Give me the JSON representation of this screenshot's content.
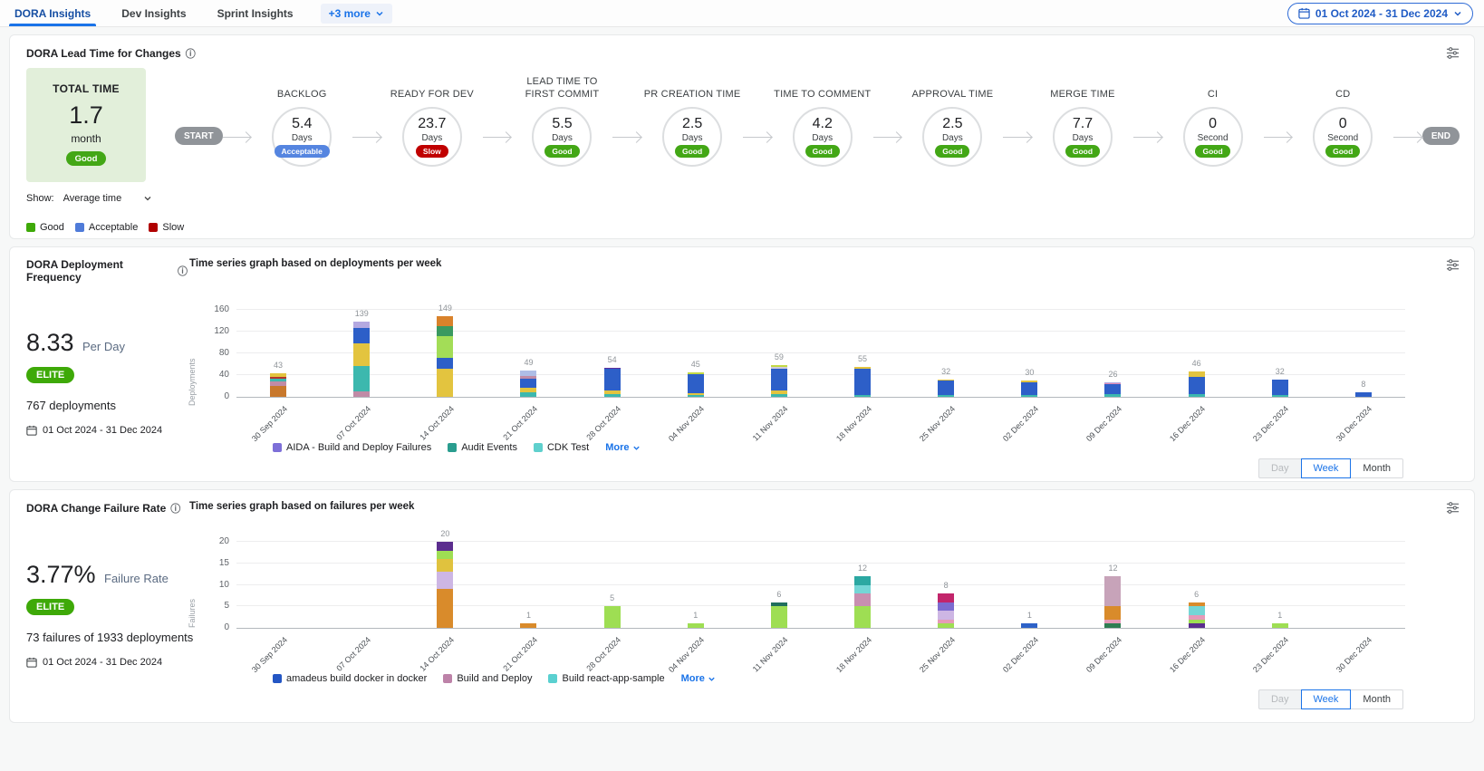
{
  "nav": {
    "tabs": [
      {
        "label": "DORA Insights",
        "active": true
      },
      {
        "label": "Dev Insights",
        "active": false
      },
      {
        "label": "Sprint Insights",
        "active": false
      }
    ],
    "more_label": "+3 more",
    "date_range": "01 Oct 2024 - 31 Dec 2024"
  },
  "lead_time": {
    "title": "DORA Lead Time for Changes",
    "total_label": "TOTAL TIME",
    "total_value": "1.7",
    "total_unit": "month",
    "total_status": "Good",
    "show_label": "Show:",
    "show_value": "Average time",
    "start_label": "START",
    "end_label": "END",
    "legend": [
      {
        "label": "Good",
        "color": "#3ea908"
      },
      {
        "label": "Acceptable",
        "color": "#4f7bd9"
      },
      {
        "label": "Slow",
        "color": "#b00000"
      }
    ],
    "status_colors": {
      "Good": "#43a716",
      "Acceptable": "#5585e0",
      "Slow": "#c00000"
    },
    "stages": [
      {
        "name": "BACKLOG",
        "value": "5.4",
        "unit": "Days",
        "status": "Acceptable"
      },
      {
        "name": "READY FOR DEV",
        "value": "23.7",
        "unit": "Days",
        "status": "Slow"
      },
      {
        "name": "LEAD TIME TO FIRST COMMIT",
        "value": "5.5",
        "unit": "Days",
        "status": "Good"
      },
      {
        "name": "PR CREATION TIME",
        "value": "2.5",
        "unit": "Days",
        "status": "Good"
      },
      {
        "name": "TIME TO COMMENT",
        "value": "4.2",
        "unit": "Days",
        "status": "Good"
      },
      {
        "name": "APPROVAL TIME",
        "value": "2.5",
        "unit": "Days",
        "status": "Good"
      },
      {
        "name": "MERGE TIME",
        "value": "7.7",
        "unit": "Days",
        "status": "Good"
      },
      {
        "name": "CI",
        "value": "0",
        "unit": "Second",
        "status": "Good"
      },
      {
        "name": "CD",
        "value": "0",
        "unit": "Second",
        "status": "Good"
      }
    ]
  },
  "deployment": {
    "title": "DORA Deployment Frequency",
    "rate_value": "8.33",
    "rate_unit": "Per Day",
    "tier": "ELITE",
    "count_text": "767 deployments",
    "date_range": "01 Oct 2024 - 31 Dec 2024"
  },
  "failure": {
    "title": "DORA Change Failure Rate",
    "rate_value": "3.77%",
    "rate_unit": "Failure Rate",
    "tier": "ELITE",
    "count_text": "73 failures of 1933 deployments",
    "date_range": "01 Oct 2024 - 31 Dec 2024"
  },
  "period_toggle": {
    "options": [
      "Day",
      "Week",
      "Month"
    ],
    "active": "Week"
  },
  "chart_data": [
    {
      "type": "bar",
      "stacked": true,
      "title": "Time series graph based on deployments per week",
      "xlabel": "",
      "ylabel": "Deployments",
      "ylim": [
        0,
        160
      ],
      "yticks": [
        0,
        40,
        80,
        120,
        160
      ],
      "grid": true,
      "legend_position": "bottom",
      "categories": [
        "30 Sep 2024",
        "07 Oct 2024",
        "14 Oct 2024",
        "21 Oct 2024",
        "28 Oct 2024",
        "04 Nov 2024",
        "11 Nov 2024",
        "18 Nov 2024",
        "25 Nov 2024",
        "02 Dec 2024",
        "09 Dec 2024",
        "16 Dec 2024",
        "23 Dec 2024",
        "30 Dec 2024"
      ],
      "totals": [
        43,
        139,
        149,
        49,
        54,
        45,
        59,
        55,
        32,
        30,
        26,
        46,
        32,
        8
      ],
      "stacks": [
        [
          {
            "c": "#c8782c",
            "v": 20
          },
          {
            "c": "#c08ba6",
            "v": 9
          },
          {
            "c": "#3cb8ae",
            "v": 5
          },
          {
            "c": "#b5332c",
            "v": 2
          },
          {
            "c": "#e3c43f",
            "v": 7
          }
        ],
        [
          {
            "c": "#c08ba6",
            "v": 10
          },
          {
            "c": "#3cb8ae",
            "v": 47
          },
          {
            "c": "#e3c43f",
            "v": 42
          },
          {
            "c": "#2d5fc8",
            "v": 27
          },
          {
            "c": "#b4a8e0",
            "v": 13
          }
        ],
        [
          {
            "c": "#e3c43f",
            "v": 52
          },
          {
            "c": "#2d5fc8",
            "v": 19
          },
          {
            "c": "#a3dd57",
            "v": 41
          },
          {
            "c": "#3a9960",
            "v": 18
          },
          {
            "c": "#d9822b",
            "v": 19
          }
        ],
        [
          {
            "c": "#3cb8ae",
            "v": 9
          },
          {
            "c": "#e3c43f",
            "v": 8
          },
          {
            "c": "#2d5fc8",
            "v": 16
          },
          {
            "c": "#c08ba6",
            "v": 5
          },
          {
            "c": "#aebde6",
            "v": 11
          }
        ],
        [
          {
            "c": "#3cb8ae",
            "v": 5
          },
          {
            "c": "#e3c43f",
            "v": 6
          },
          {
            "c": "#2d5fc8",
            "v": 40
          },
          {
            "c": "#5e2f9e",
            "v": 3
          }
        ],
        [
          {
            "c": "#3cb8ae",
            "v": 4
          },
          {
            "c": "#e3c43f",
            "v": 3
          },
          {
            "c": "#2d5fc8",
            "v": 34
          },
          {
            "c": "#c3d944",
            "v": 4
          }
        ],
        [
          {
            "c": "#3cb8ae",
            "v": 5
          },
          {
            "c": "#e3c43f",
            "v": 6
          },
          {
            "c": "#2d5fc8",
            "v": 40
          },
          {
            "c": "#cfcbdd",
            "v": 4
          },
          {
            "c": "#c3d944",
            "v": 4
          }
        ],
        [
          {
            "c": "#3cb8ae",
            "v": 4
          },
          {
            "c": "#2d5fc8",
            "v": 48
          },
          {
            "c": "#e3c43f",
            "v": 3
          }
        ],
        [
          {
            "c": "#3cb8ae",
            "v": 4
          },
          {
            "c": "#2d5fc8",
            "v": 26
          },
          {
            "c": "#e3c43f",
            "v": 2
          }
        ],
        [
          {
            "c": "#3cb8ae",
            "v": 4
          },
          {
            "c": "#2d5fc8",
            "v": 23
          },
          {
            "c": "#e3c43f",
            "v": 3
          }
        ],
        [
          {
            "c": "#3cb8ae",
            "v": 5
          },
          {
            "c": "#2d5fc8",
            "v": 18
          },
          {
            "c": "#e08cb4",
            "v": 2
          },
          {
            "c": "#b4a8e0",
            "v": 1
          }
        ],
        [
          {
            "c": "#3cb8ae",
            "v": 5
          },
          {
            "c": "#2d5fc8",
            "v": 31
          },
          {
            "c": "#e3c43f",
            "v": 10
          }
        ],
        [
          {
            "c": "#3cb8ae",
            "v": 3
          },
          {
            "c": "#2d5fc8",
            "v": 29
          }
        ],
        [
          {
            "c": "#2d5fc8",
            "v": 8
          }
        ]
      ],
      "legend": [
        {
          "label": "AIDA - Build and Deploy Failures",
          "color": "#7d6fd8"
        },
        {
          "label": "Audit Events",
          "color": "#2a9d8f"
        },
        {
          "label": "CDK Test",
          "color": "#5fd0cd"
        }
      ],
      "more_label": "More"
    },
    {
      "type": "bar",
      "stacked": true,
      "title": "Time series graph based on failures per week",
      "xlabel": "",
      "ylabel": "Failures",
      "ylim": [
        0,
        20
      ],
      "yticks": [
        0,
        5,
        10,
        15,
        20
      ],
      "grid": true,
      "legend_position": "bottom",
      "categories": [
        "30 Sep 2024",
        "07 Oct 2024",
        "14 Oct 2024",
        "21 Oct 2024",
        "28 Oct 2024",
        "04 Nov 2024",
        "11 Nov 2024",
        "18 Nov 2024",
        "25 Nov 2024",
        "02 Dec 2024",
        "09 Dec 2024",
        "16 Dec 2024",
        "23 Dec 2024",
        "30 Dec 2024"
      ],
      "totals": [
        0,
        0,
        20,
        1,
        5,
        1,
        6,
        12,
        8,
        1,
        12,
        6,
        1,
        0
      ],
      "stacks": [
        [],
        [],
        [
          {
            "c": "#d98b2b",
            "v": 9
          },
          {
            "c": "#cdb6e4",
            "v": 4
          },
          {
            "c": "#e0c23e",
            "v": 3
          },
          {
            "c": "#9ede53",
            "v": 2
          },
          {
            "c": "#5b2d8e",
            "v": 2
          }
        ],
        [
          {
            "c": "#d98b2b",
            "v": 1
          }
        ],
        [
          {
            "c": "#9ede53",
            "v": 5
          }
        ],
        [
          {
            "c": "#9ede53",
            "v": 1
          }
        ],
        [
          {
            "c": "#9ede53",
            "v": 5
          },
          {
            "c": "#1f6f5d",
            "v": 1
          }
        ],
        [
          {
            "c": "#9ede53",
            "v": 5
          },
          {
            "c": "#c88fb0",
            "v": 3
          },
          {
            "c": "#74d6d6",
            "v": 2
          },
          {
            "c": "#2ba8a2",
            "v": 2
          }
        ],
        [
          {
            "c": "#9ede53",
            "v": 1
          },
          {
            "c": "#e59ab8",
            "v": 1
          },
          {
            "c": "#cdb6e4",
            "v": 2
          },
          {
            "c": "#7c6bd0",
            "v": 2
          },
          {
            "c": "#c2256b",
            "v": 2
          }
        ],
        [
          {
            "c": "#2d62c8",
            "v": 1
          }
        ],
        [
          {
            "c": "#2e7d52",
            "v": 1
          },
          {
            "c": "#e59ab8",
            "v": 1
          },
          {
            "c": "#d98b2b",
            "v": 3
          },
          {
            "c": "#c7a3b9",
            "v": 7
          }
        ],
        [
          {
            "c": "#5b2d8e",
            "v": 1
          },
          {
            "c": "#9ede53",
            "v": 1
          },
          {
            "c": "#e59ab8",
            "v": 1
          },
          {
            "c": "#74d6d6",
            "v": 2
          },
          {
            "c": "#d98b2b",
            "v": 1
          }
        ],
        [
          {
            "c": "#9ede53",
            "v": 1
          }
        ],
        []
      ],
      "legend": [
        {
          "label": "amadeus build docker in docker",
          "color": "#2456c4"
        },
        {
          "label": "Build and Deploy",
          "color": "#bd82a8"
        },
        {
          "label": "Build react-app-sample",
          "color": "#5ad0d0"
        }
      ],
      "more_label": "More"
    }
  ]
}
